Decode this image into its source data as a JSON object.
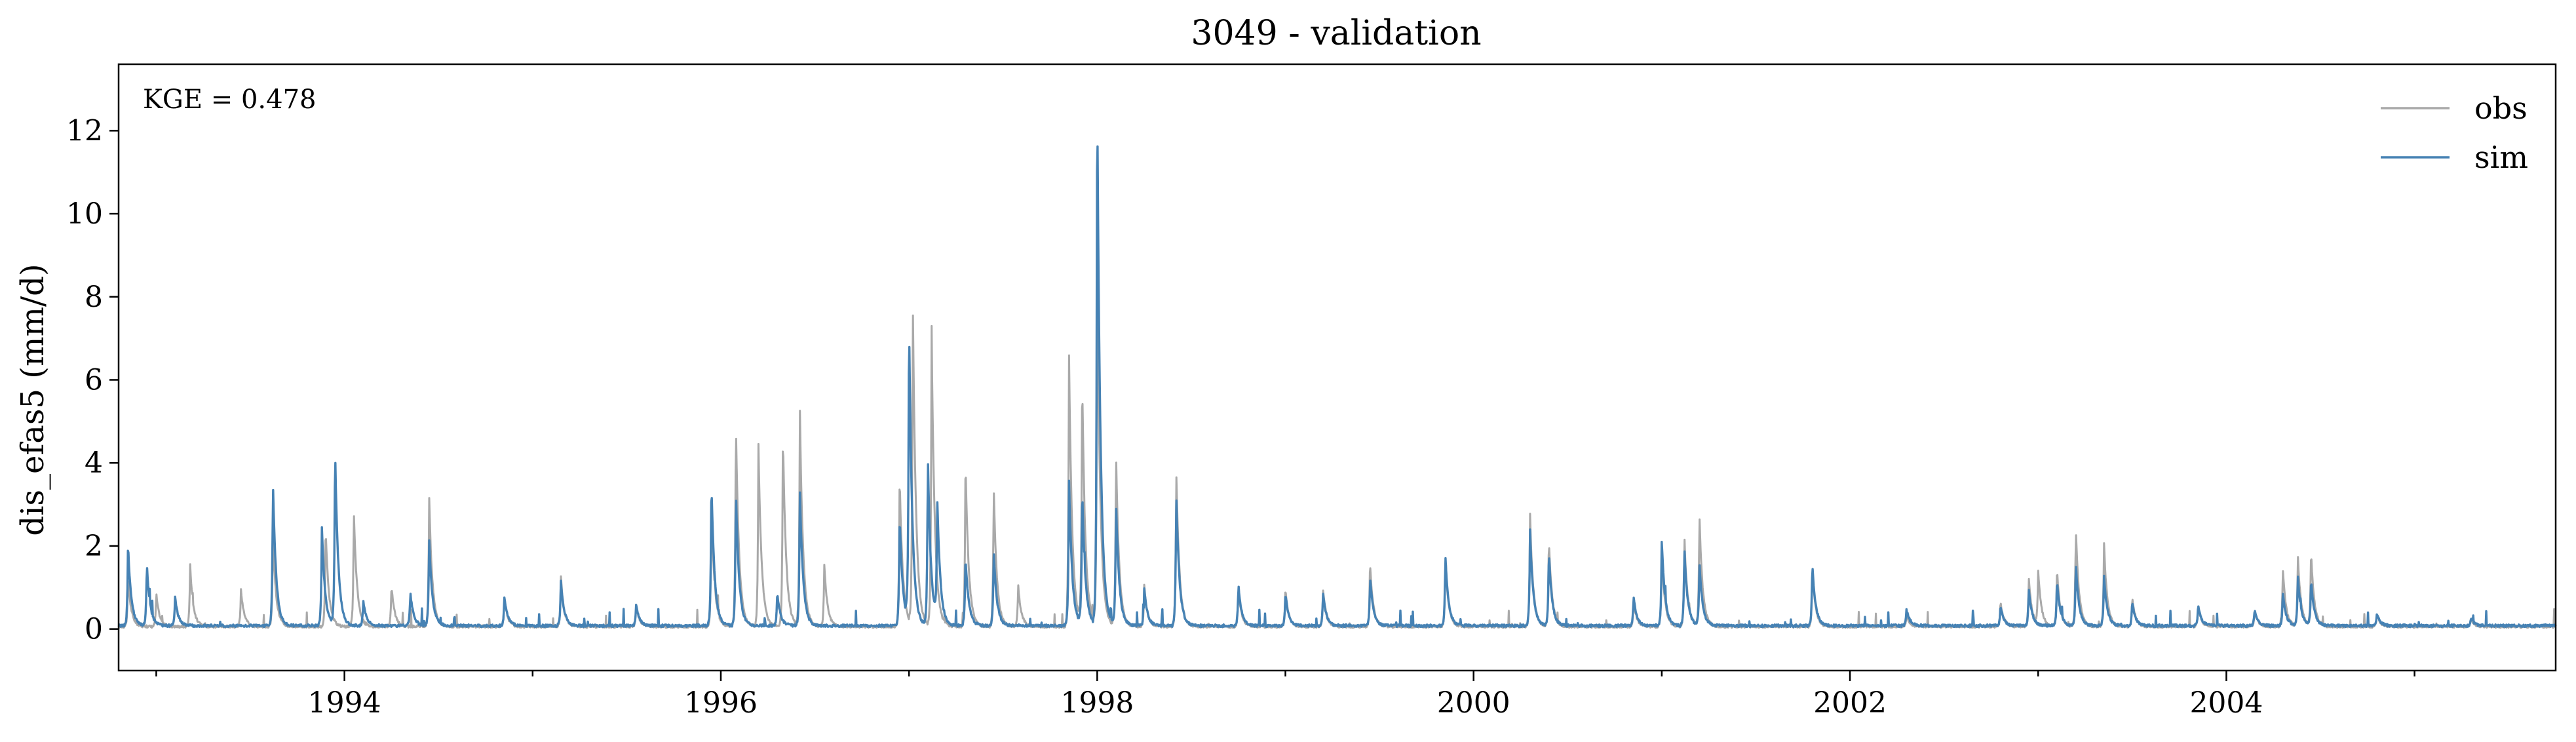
{
  "chart_data": {
    "type": "line",
    "title": "3049 - validation",
    "xlabel": "",
    "ylabel": "dis_efas5 (mm/d)",
    "xlim": [
      1992.8,
      2005.75
    ],
    "ylim": [
      -1,
      13.6
    ],
    "x_ticks": [
      1994,
      1996,
      1998,
      2000,
      2002,
      2004
    ],
    "x_tick_labels": [
      "1994",
      "1996",
      "1998",
      "2000",
      "2002",
      "2004"
    ],
    "y_ticks": [
      0,
      2,
      4,
      6,
      8,
      10,
      12
    ],
    "y_tick_labels": [
      "0",
      "2",
      "4",
      "6",
      "8",
      "10",
      "12"
    ],
    "grid": false,
    "legend_position": "top-right",
    "annotation": "KGE = 0.478",
    "series": [
      {
        "name": "obs",
        "color": "#a9a9a9",
        "peaks": [
          [
            1992.85,
            1.2
          ],
          [
            1993.0,
            0.8
          ],
          [
            1993.18,
            1.5
          ],
          [
            1993.45,
            0.9
          ],
          [
            1993.62,
            2.2
          ],
          [
            1993.9,
            2.4
          ],
          [
            1994.05,
            2.8
          ],
          [
            1994.25,
            1.0
          ],
          [
            1994.45,
            3.2
          ],
          [
            1994.85,
            0.7
          ],
          [
            1995.15,
            1.2
          ],
          [
            1995.55,
            0.5
          ],
          [
            1995.95,
            2.9
          ],
          [
            1996.08,
            5.0
          ],
          [
            1996.2,
            4.4
          ],
          [
            1996.33,
            4.7
          ],
          [
            1996.42,
            5.3
          ],
          [
            1996.55,
            1.5
          ],
          [
            1996.95,
            3.7
          ],
          [
            1997.02,
            8.0
          ],
          [
            1997.12,
            7.1
          ],
          [
            1997.3,
            4.1
          ],
          [
            1997.45,
            3.4
          ],
          [
            1997.58,
            1.0
          ],
          [
            1997.85,
            6.7
          ],
          [
            1997.92,
            6.0
          ],
          [
            1998.0,
            8.5
          ],
          [
            1998.1,
            4.2
          ],
          [
            1998.25,
            1.0
          ],
          [
            1998.42,
            3.8
          ],
          [
            1998.75,
            0.9
          ],
          [
            1999.0,
            0.9
          ],
          [
            1999.2,
            0.9
          ],
          [
            1999.45,
            1.5
          ],
          [
            1999.85,
            1.6
          ],
          [
            2000.3,
            2.7
          ],
          [
            2000.4,
            2.1
          ],
          [
            2000.85,
            0.6
          ],
          [
            2001.0,
            1.8
          ],
          [
            2001.12,
            2.2
          ],
          [
            2001.2,
            2.7
          ],
          [
            2001.8,
            1.4
          ],
          [
            2002.3,
            0.3
          ],
          [
            2002.8,
            0.6
          ],
          [
            2002.95,
            1.2
          ],
          [
            2003.0,
            1.3
          ],
          [
            2003.1,
            1.4
          ],
          [
            2003.2,
            2.4
          ],
          [
            2003.35,
            2.0
          ],
          [
            2003.5,
            0.7
          ],
          [
            2003.85,
            0.5
          ],
          [
            2004.15,
            0.4
          ],
          [
            2004.3,
            1.4
          ],
          [
            2004.38,
            1.7
          ],
          [
            2004.45,
            1.8
          ],
          [
            2004.8,
            0.3
          ],
          [
            2005.3,
            0.2
          ]
        ]
      },
      {
        "name": "sim",
        "color": "#4682b4",
        "peaks": [
          [
            1992.85,
            2.0
          ],
          [
            1992.95,
            1.5
          ],
          [
            1993.1,
            0.7
          ],
          [
            1993.62,
            3.5
          ],
          [
            1993.88,
            2.4
          ],
          [
            1993.95,
            4.3
          ],
          [
            1994.1,
            0.6
          ],
          [
            1994.35,
            0.8
          ],
          [
            1994.45,
            2.1
          ],
          [
            1994.85,
            0.7
          ],
          [
            1995.15,
            1.1
          ],
          [
            1995.55,
            0.5
          ],
          [
            1995.95,
            3.5
          ],
          [
            1996.08,
            3.3
          ],
          [
            1996.3,
            0.8
          ],
          [
            1996.42,
            3.3
          ],
          [
            1996.95,
            2.7
          ],
          [
            1997.0,
            7.4
          ],
          [
            1997.1,
            4.1
          ],
          [
            1997.15,
            2.9
          ],
          [
            1997.3,
            1.7
          ],
          [
            1997.45,
            1.8
          ],
          [
            1997.85,
            3.6
          ],
          [
            1997.92,
            3.3
          ],
          [
            1998.0,
            13.0
          ],
          [
            1998.1,
            3.0
          ],
          [
            1998.25,
            0.9
          ],
          [
            1998.42,
            3.2
          ],
          [
            1998.75,
            1.0
          ],
          [
            1999.0,
            0.8
          ],
          [
            1999.2,
            0.8
          ],
          [
            1999.45,
            1.2
          ],
          [
            1999.85,
            1.7
          ],
          [
            2000.3,
            2.3
          ],
          [
            2000.4,
            1.8
          ],
          [
            2000.85,
            0.7
          ],
          [
            2001.0,
            2.1
          ],
          [
            2001.12,
            1.9
          ],
          [
            2001.2,
            1.5
          ],
          [
            2001.8,
            1.5
          ],
          [
            2002.3,
            0.4
          ],
          [
            2002.8,
            0.5
          ],
          [
            2002.95,
            0.9
          ],
          [
            2003.1,
            1.1
          ],
          [
            2003.2,
            1.5
          ],
          [
            2003.35,
            1.2
          ],
          [
            2003.5,
            0.6
          ],
          [
            2003.85,
            0.5
          ],
          [
            2004.15,
            0.4
          ],
          [
            2004.3,
            0.8
          ],
          [
            2004.38,
            1.2
          ],
          [
            2004.45,
            1.1
          ],
          [
            2004.8,
            0.3
          ],
          [
            2005.3,
            0.2
          ]
        ]
      }
    ]
  }
}
